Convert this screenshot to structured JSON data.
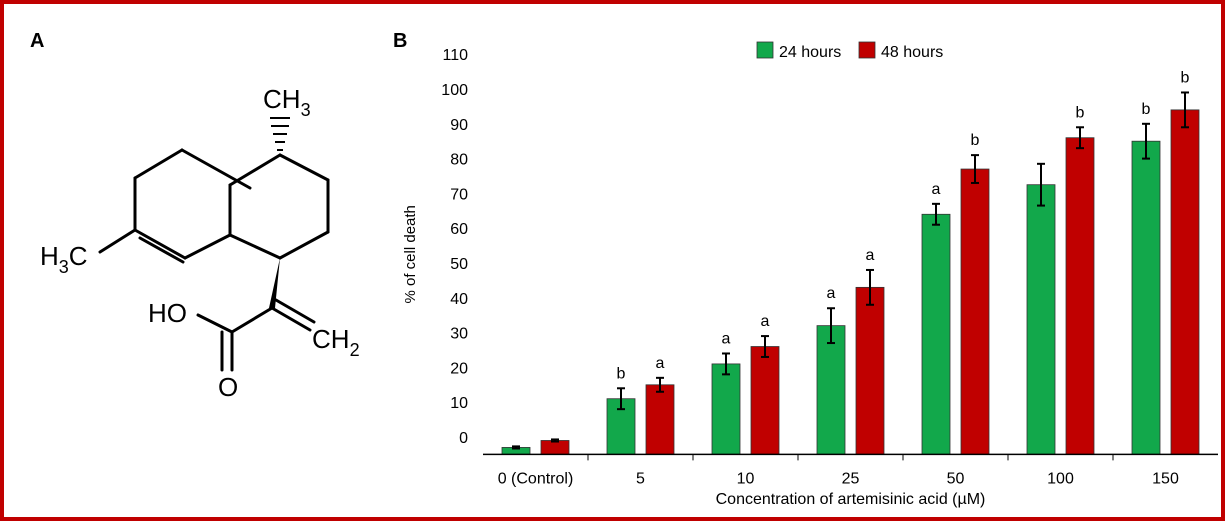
{
  "panels": {
    "a_label": "A",
    "b_label": "B"
  },
  "molecule": {
    "labels": {
      "ch3_top": "CH",
      "ch3_top_sub": "3",
      "h3c_left_h": "H",
      "h3c_left_sub": "3",
      "h3c_left_c": "C",
      "ho": "HO",
      "o": "O",
      "ch2": "CH",
      "ch2_sub": "2"
    }
  },
  "chart_data": {
    "type": "bar",
    "xlabel": "Concentration of artemisinic acid (µM)",
    "ylabel": "% of cell death",
    "ylim": [
      -5,
      110
    ],
    "yticks": [
      0,
      10,
      20,
      30,
      40,
      50,
      60,
      70,
      80,
      90,
      100,
      110
    ],
    "legend_position": "top-center",
    "categories": [
      "0 (Control)",
      "5",
      "10",
      "25",
      "50",
      "100",
      "150"
    ],
    "series": [
      {
        "name": "24 hours",
        "color": "#12a84b",
        "values": [
          -3,
          11,
          21,
          32,
          64,
          72.5,
          85
        ],
        "errors": [
          0.3,
          3,
          3,
          5,
          3,
          6,
          5
        ],
        "annotations": [
          "",
          "b",
          "a",
          "a",
          "a",
          "",
          "b"
        ]
      },
      {
        "name": "48 hours",
        "color": "#c00000",
        "values": [
          -1,
          15,
          26,
          43,
          77,
          86,
          94
        ],
        "errors": [
          0.3,
          2,
          3,
          5,
          4,
          3,
          5
        ],
        "annotations": [
          "",
          "a",
          "a",
          "a",
          "b",
          "b",
          "b"
        ]
      }
    ]
  }
}
